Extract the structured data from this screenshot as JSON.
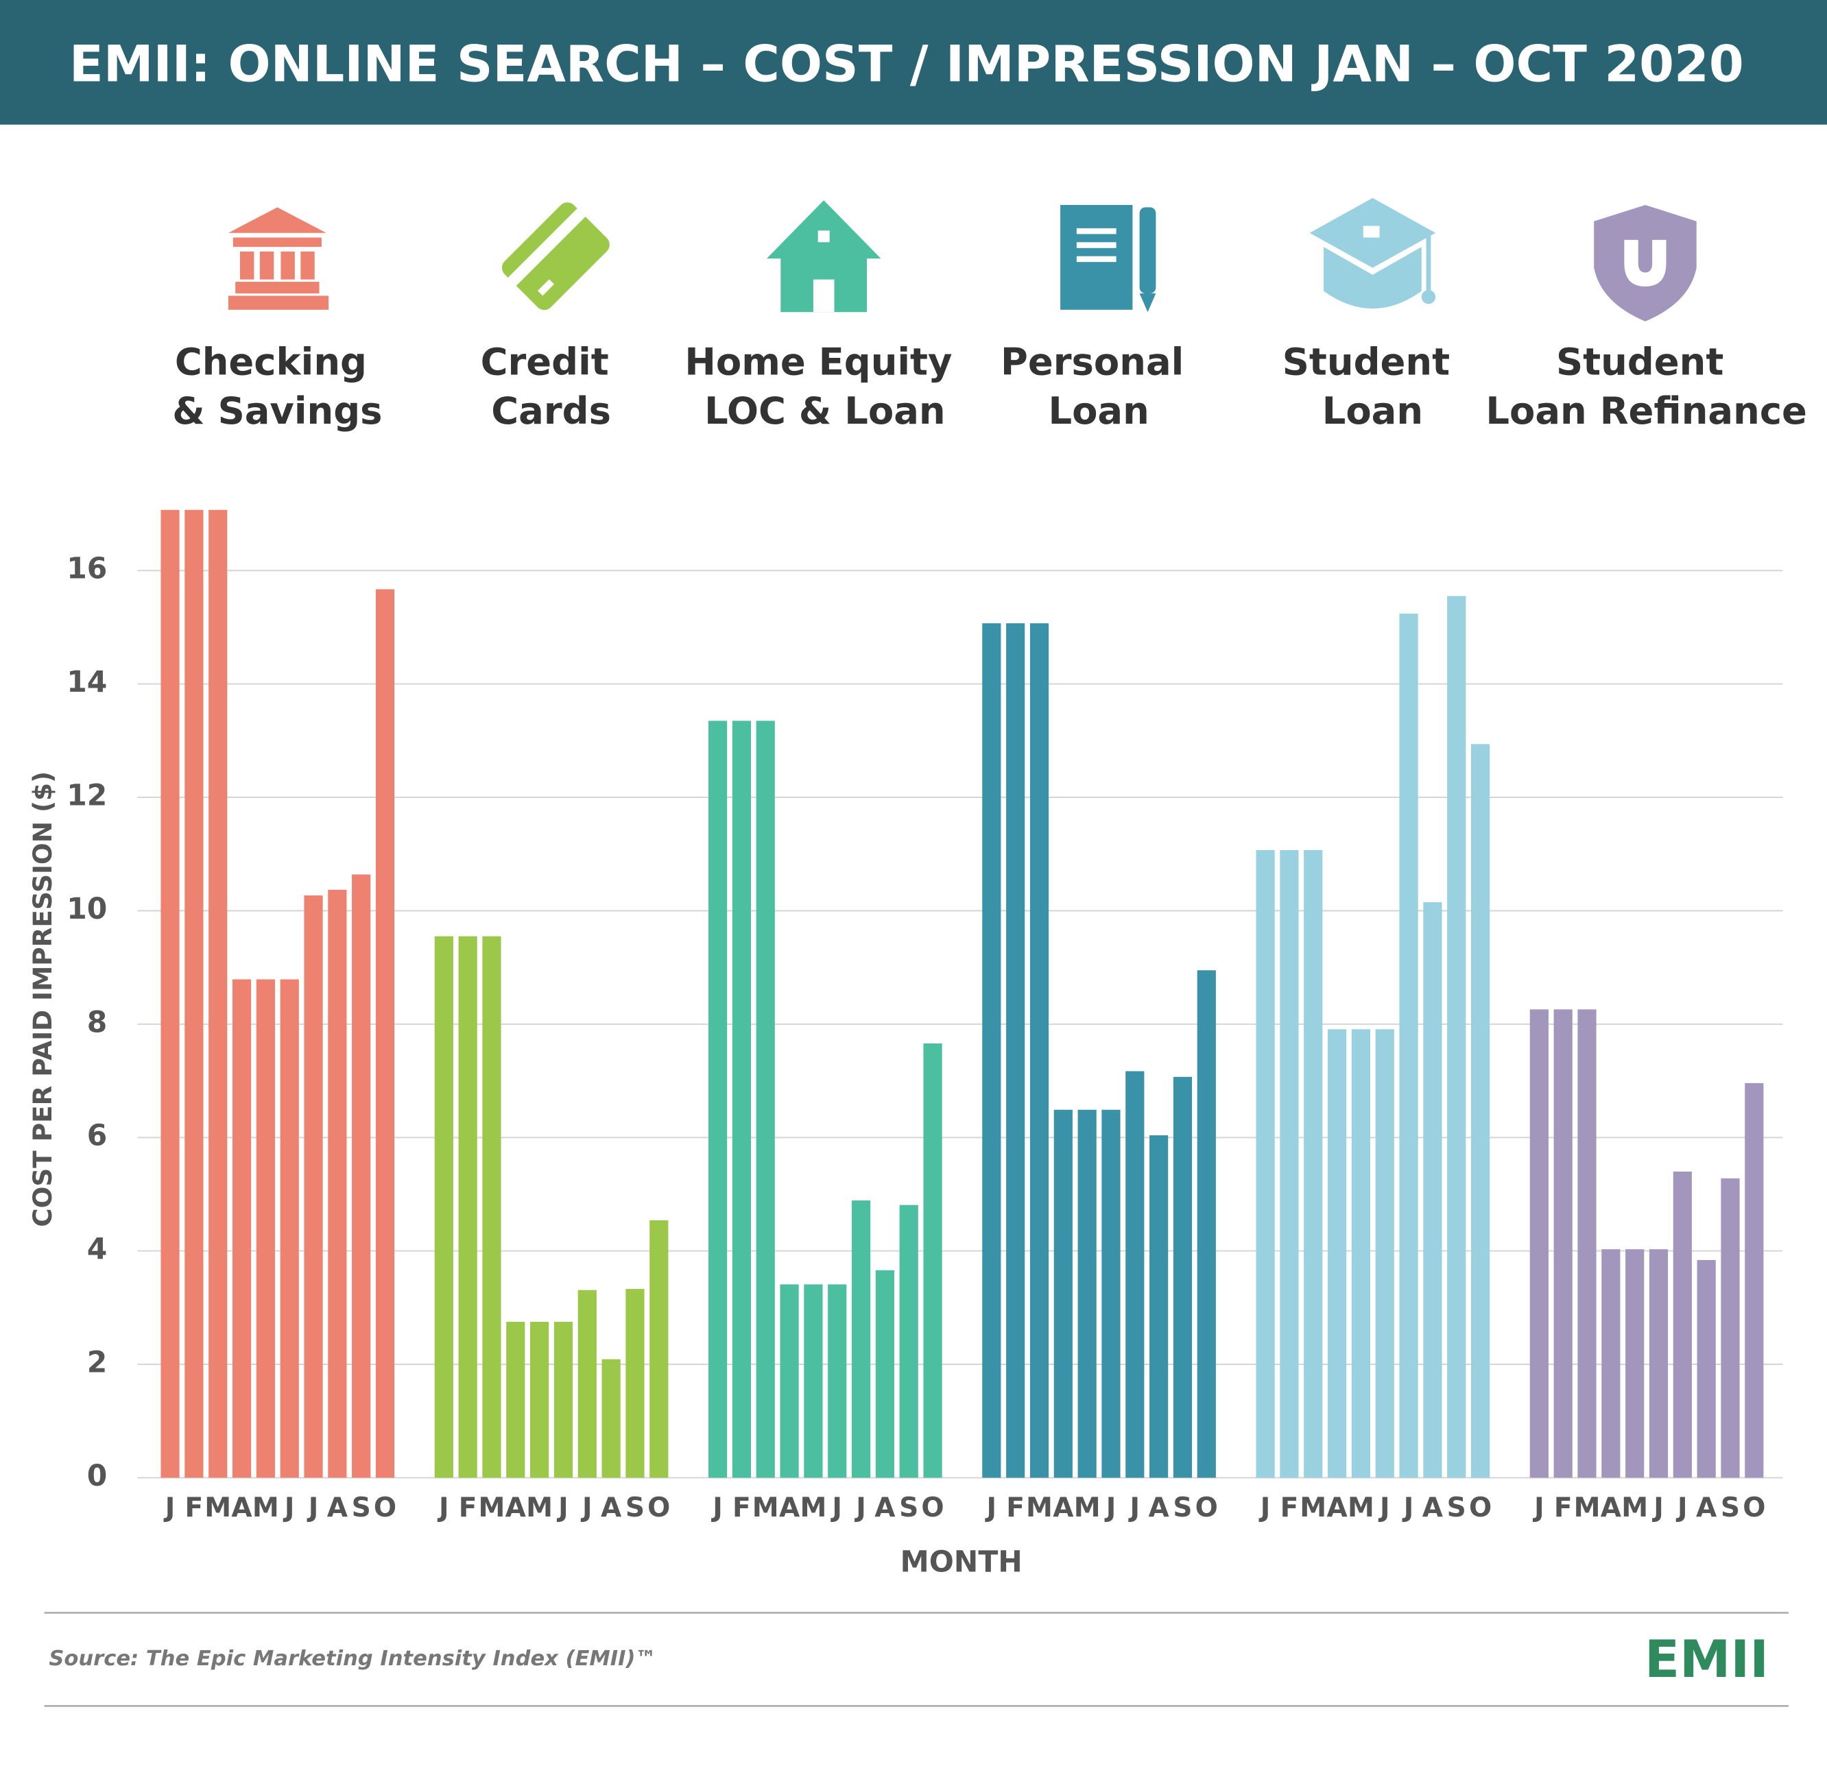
{
  "chart_data": {
    "type": "grouped-bar",
    "title": "EMII: ONLINE SEARCH – COST / IMPRESSION JAN – OCT 2020",
    "y_label": "COST PER PAID IMPRESSION ($)",
    "x_label": "MONTH",
    "source": "Source: The Epic Marketing Intensity Index (EMII)™",
    "logo": "EMII",
    "categories": [
      "J",
      "F",
      "M",
      "A",
      "M",
      "J",
      "J",
      "A",
      "S",
      "O"
    ],
    "ylim": [
      0,
      17.07
    ],
    "yticks": [
      0,
      2,
      4,
      6,
      8,
      10,
      12,
      14,
      16
    ],
    "grid": true,
    "series": [
      {
        "name": "Checking & Savings",
        "color": "#ed8270",
        "values": [
          17.07,
          17.07,
          17.07,
          8.79,
          8.79,
          8.79,
          10.27,
          10.37,
          10.64,
          15.67
        ]
      },
      {
        "name": "Credit Cards",
        "color": "#9cc84a",
        "values": [
          9.55,
          9.55,
          9.55,
          2.75,
          2.75,
          2.75,
          3.31,
          2.09,
          3.33,
          4.54
        ]
      },
      {
        "name": "Home Equity LOC & Loan",
        "color": "#4bbfa0",
        "values": [
          13.35,
          13.35,
          13.35,
          3.41,
          3.41,
          3.41,
          4.89,
          3.66,
          4.81,
          7.66
        ]
      },
      {
        "name": "Personal Loan",
        "color": "#3a92a8",
        "values": [
          15.07,
          15.07,
          15.07,
          6.49,
          6.49,
          6.49,
          7.17,
          6.04,
          7.07,
          8.95
        ]
      },
      {
        "name": "Student Loan",
        "color": "#99d1e0",
        "values": [
          11.07,
          11.07,
          11.07,
          7.91,
          7.91,
          7.91,
          15.24,
          10.15,
          15.55,
          12.94
        ]
      },
      {
        "name": "Student Loan Refinance",
        "color": "#a396bc",
        "values": [
          8.26,
          8.26,
          8.26,
          4.03,
          4.03,
          4.03,
          5.4,
          3.84,
          5.28,
          6.96
        ]
      }
    ]
  }
}
